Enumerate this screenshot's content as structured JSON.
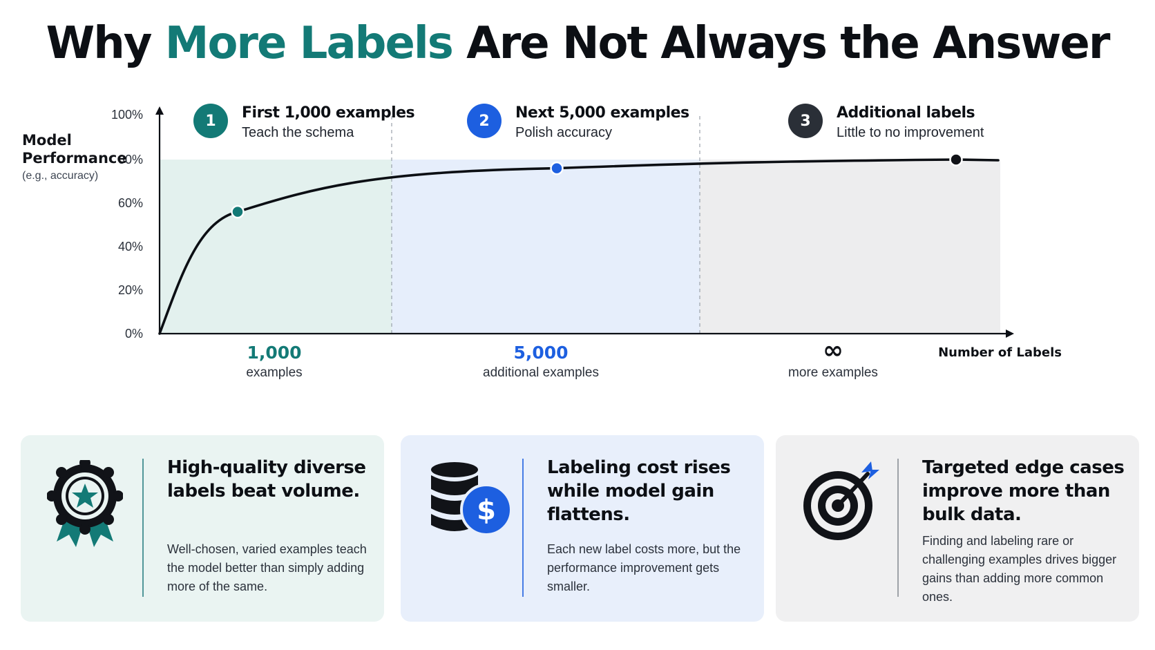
{
  "title": {
    "pre": "Why ",
    "accent": "More Labels",
    "post": " Are Not Always the Answer"
  },
  "y_axis": {
    "label": "Model Performance",
    "sublabel": "(e.g., accuracy)"
  },
  "x_axis": {
    "label": "Number of Labels"
  },
  "steps": [
    {
      "num": "1",
      "title": "First 1,000 examples",
      "sub": "Teach the schema",
      "color": "#137a76"
    },
    {
      "num": "2",
      "title": "Next 5,000 examples",
      "sub": "Polish accuracy",
      "color": "#1d5fe0"
    },
    {
      "num": "3",
      "title": "Additional labels",
      "sub": "Little to no improvement",
      "color": "#2a2f37"
    }
  ],
  "chart_data": {
    "type": "line",
    "y_ticks": [
      "0%",
      "20%",
      "40%",
      "60%",
      "80%",
      "100%"
    ],
    "ylim": [
      0,
      100
    ],
    "regions": [
      {
        "value": "1,000",
        "caption": "examples",
        "color": "#137a76",
        "fill": "#e3f1ee"
      },
      {
        "value": "5,000",
        "caption": "additional examples",
        "color": "#1d5fe0",
        "fill": "#e6eefb"
      },
      {
        "value": "∞",
        "caption": "more examples",
        "color": "#111318",
        "fill": "#ededee"
      }
    ],
    "series": [
      {
        "values": [
          0,
          56,
          76,
          80
        ],
        "marker_colors": [
          "#137a76",
          "#1d5fe0",
          "#111318"
        ]
      }
    ],
    "grid": false
  },
  "cards": [
    {
      "title": "High-quality diverse labels beat volume.",
      "body": "Well-chosen, varied examples teach the model better than simply adding more of the same.",
      "bg": "#eaf4f2",
      "icon": "award-ribbon-icon"
    },
    {
      "title": "Labeling cost rises while model gain flattens.",
      "body": "Each new label costs more, but the performance improvement gets smaller.",
      "bg": "#e8effb",
      "icon": "database-dollar-icon"
    },
    {
      "title": "Targeted edge cases improve more than bulk data.",
      "body": "Finding and labeling rare or challenging examples drives bigger gains than adding more common ones.",
      "bg": "#f0f0f1",
      "icon": "target-arrow-icon"
    }
  ]
}
